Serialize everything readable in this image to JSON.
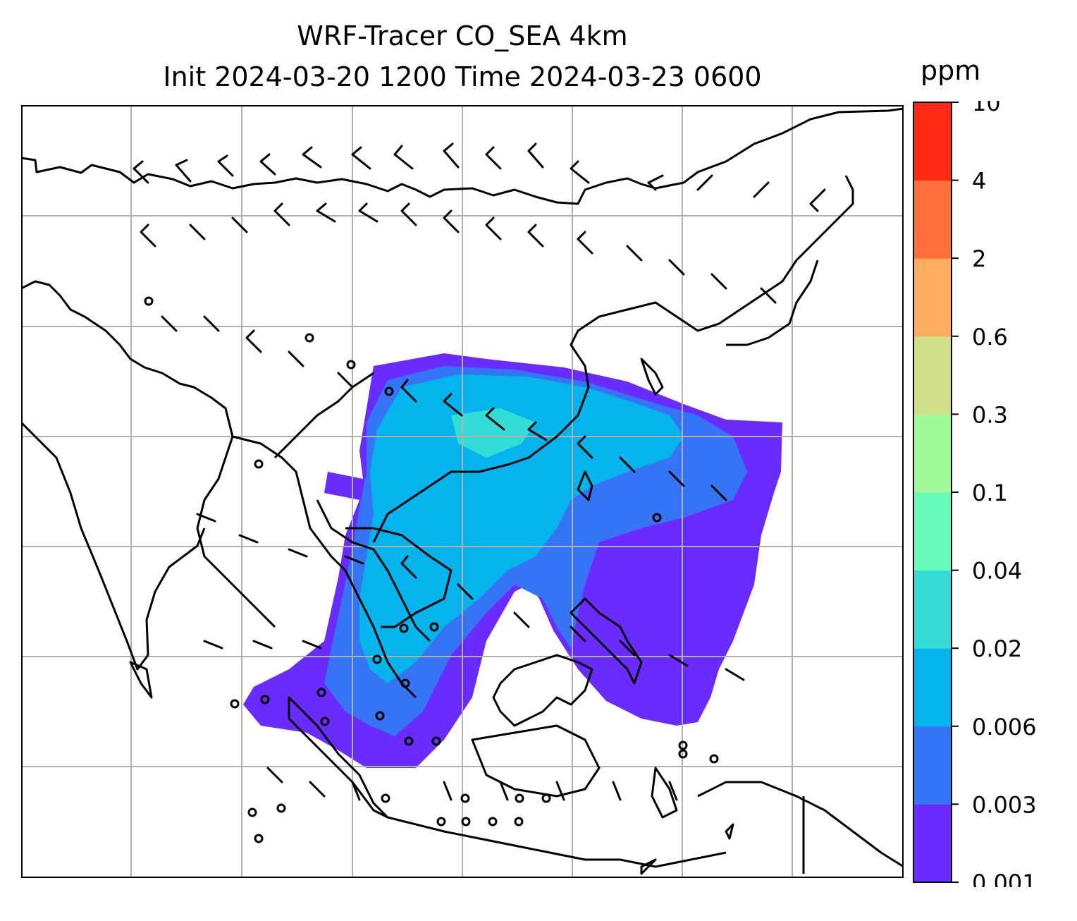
{
  "figure": {
    "title_line1": "WRF-Tracer CO_SEA 4km",
    "title_line2": "Init 2024-03-20 1200 Time 2024-03-23 0600",
    "colorbar_unit": "ppm"
  },
  "colorbar": {
    "ticks": [
      "0.001",
      "0.003",
      "0.006",
      "0.02",
      "0.04",
      "0.1",
      "0.3",
      "0.6",
      "2",
      "4",
      "10"
    ],
    "colors": [
      "#6a2bff",
      "#3575f5",
      "#05b4ec",
      "#33dcd5",
      "#66fbbb",
      "#9ffa97",
      "#cfe088",
      "#ffae61",
      "#ff6f3b",
      "#ff2a14"
    ]
  },
  "map": {
    "gridlines": true,
    "coastline_color": "#000000",
    "plume_colors": {
      "low": "#6a2bff",
      "mid": "#3575f5",
      "high": "#05b4ec",
      "peak": "#33dcd5"
    }
  }
}
